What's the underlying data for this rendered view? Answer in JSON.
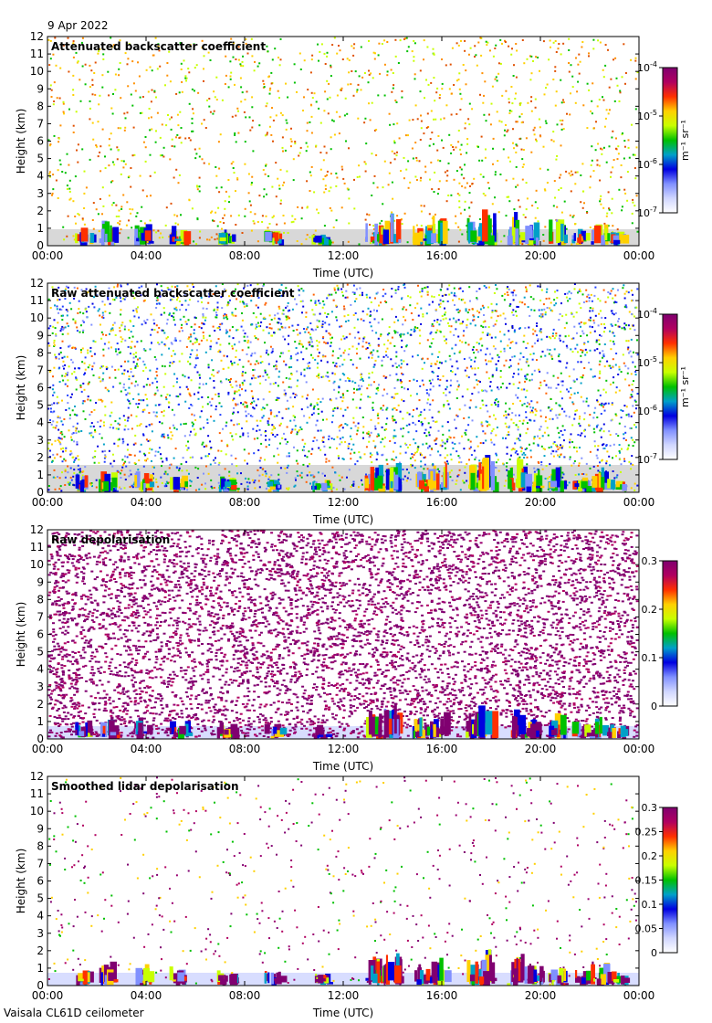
{
  "header": {
    "date": "9 Apr 2022"
  },
  "footer": {
    "instrument": "Vaisala CL61D ceilometer"
  },
  "colors": {
    "scale": [
      "#ffffff",
      "#d0d6ff",
      "#8090ff",
      "#0000e0",
      "#00a0c8",
      "#00c000",
      "#c8ff00",
      "#ffd000",
      "#ff3000",
      "#b00060",
      "#800070"
    ],
    "ground": "#d8d8d8"
  },
  "chart_data": [
    {
      "type": "heatmap",
      "title": "Attenuated backscatter coefficient",
      "xlabel": "Time (UTC)",
      "ylabel": "Height (km)",
      "xticks": [
        "00:00",
        "04:00",
        "08:00",
        "12:00",
        "16:00",
        "20:00",
        "00:00"
      ],
      "yticks": [
        "0",
        "1",
        "2",
        "3",
        "4",
        "5",
        "6",
        "7",
        "8",
        "9",
        "10",
        "11",
        "12"
      ],
      "xlim": [
        0,
        24
      ],
      "ylim": [
        0,
        12
      ],
      "colorbar": {
        "label": "m⁻¹ sr⁻¹",
        "scale": "log",
        "range": [
          1e-07,
          0.0001
        ],
        "ticks": [
          {
            "base": "10",
            "exp": "-7",
            "frac": 0
          },
          {
            "base": "10",
            "exp": "-6",
            "frac": 0.3333
          },
          {
            "base": "10",
            "exp": "-5",
            "frac": 0.6667
          },
          {
            "base": "10",
            "exp": "-4",
            "frac": 1
          }
        ]
      }
    },
    {
      "type": "heatmap",
      "title": "Raw attenuated backscatter coefficient",
      "xlabel": "Time (UTC)",
      "ylabel": "Height (km)",
      "xticks": [
        "00:00",
        "04:00",
        "08:00",
        "12:00",
        "16:00",
        "20:00",
        "00:00"
      ],
      "yticks": [
        "0",
        "1",
        "2",
        "3",
        "4",
        "5",
        "6",
        "7",
        "8",
        "9",
        "10",
        "11",
        "12"
      ],
      "xlim": [
        0,
        24
      ],
      "ylim": [
        0,
        12
      ],
      "colorbar": {
        "label": "m⁻¹ sr⁻¹",
        "scale": "log",
        "range": [
          1e-07,
          0.0001
        ],
        "ticks": [
          {
            "base": "10",
            "exp": "-7",
            "frac": 0
          },
          {
            "base": "10",
            "exp": "-6",
            "frac": 0.3333
          },
          {
            "base": "10",
            "exp": "-5",
            "frac": 0.6667
          },
          {
            "base": "10",
            "exp": "-4",
            "frac": 1
          }
        ]
      }
    },
    {
      "type": "heatmap",
      "title": "Raw depolarisation",
      "xlabel": "Time (UTC)",
      "ylabel": "Height (km)",
      "xticks": [
        "00:00",
        "04:00",
        "08:00",
        "12:00",
        "16:00",
        "20:00",
        "00:00"
      ],
      "yticks": [
        "0",
        "1",
        "2",
        "3",
        "4",
        "5",
        "6",
        "7",
        "8",
        "9",
        "10",
        "11",
        "12"
      ],
      "xlim": [
        0,
        24
      ],
      "ylim": [
        0,
        12
      ],
      "colorbar": {
        "label": "",
        "scale": "linear",
        "range": [
          0,
          0.3
        ],
        "ticks": [
          {
            "base": "0",
            "exp": "",
            "frac": 0
          },
          {
            "base": "0.1",
            "exp": "",
            "frac": 0.3333
          },
          {
            "base": "0.2",
            "exp": "",
            "frac": 0.6667
          },
          {
            "base": "0.3",
            "exp": "",
            "frac": 1
          }
        ]
      }
    },
    {
      "type": "heatmap",
      "title": "Smoothed lidar depolarisation",
      "xlabel": "Time (UTC)",
      "ylabel": "Height (km)",
      "xticks": [
        "00:00",
        "04:00",
        "08:00",
        "12:00",
        "16:00",
        "20:00",
        "00:00"
      ],
      "yticks": [
        "0",
        "1",
        "2",
        "3",
        "4",
        "5",
        "6",
        "7",
        "8",
        "9",
        "10",
        "11",
        "12"
      ],
      "xlim": [
        0,
        24
      ],
      "ylim": [
        0,
        12
      ],
      "colorbar": {
        "label": "",
        "scale": "linear",
        "range": [
          0,
          0.3
        ],
        "ticks": [
          {
            "base": "0",
            "exp": "",
            "frac": 0
          },
          {
            "base": "0.05",
            "exp": "",
            "frac": 0.1667
          },
          {
            "base": "0.1",
            "exp": "",
            "frac": 0.3333
          },
          {
            "base": "0.15",
            "exp": "",
            "frac": 0.5
          },
          {
            "base": "0.2",
            "exp": "",
            "frac": 0.6667
          },
          {
            "base": "0.25",
            "exp": "",
            "frac": 0.8333
          },
          {
            "base": "0.3",
            "exp": "",
            "frac": 1
          }
        ]
      }
    }
  ]
}
